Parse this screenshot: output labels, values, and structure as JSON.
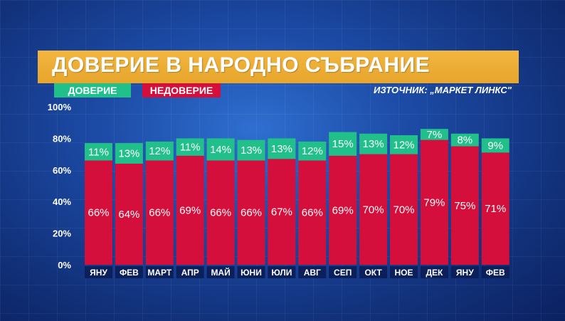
{
  "header": {
    "title": "ДОВЕРИЕ В НАРОДНО СЪБРАНИЕ",
    "legend_trust": "ДОВЕРИЕ",
    "legend_distrust": "НЕДОВЕРИЕ",
    "source": "ИЗТОЧНИК: „МАРКЕТ ЛИНКС\""
  },
  "colors": {
    "trust": "#21c08a",
    "distrust": "#d40f3c",
    "title_bar": "#e9a92f",
    "category_label_bg": "#0b1f5a"
  },
  "chart_data": {
    "type": "bar",
    "stacked": true,
    "categories": [
      "ЯНУ",
      "ФЕВ",
      "МАРТ",
      "АПР",
      "МАЙ",
      "ЮНИ",
      "ЮЛИ",
      "АВГ",
      "СЕП",
      "ОКТ",
      "НОЕ",
      "ДЕК",
      "ЯНУ",
      "ФЕВ"
    ],
    "series": [
      {
        "name": "НЕДОВЕРИЕ",
        "values": [
          66,
          64,
          66,
          69,
          66,
          66,
          67,
          66,
          69,
          70,
          70,
          79,
          75,
          71
        ]
      },
      {
        "name": "ДОВЕРИЕ",
        "values": [
          11,
          13,
          12,
          11,
          14,
          13,
          13,
          12,
          15,
          13,
          12,
          7,
          8,
          9
        ]
      }
    ],
    "y_ticks": [
      "0%",
      "20%",
      "40%",
      "60%",
      "80%",
      "100%"
    ],
    "ylim": [
      0,
      100
    ],
    "unit": "%",
    "grid": false
  }
}
